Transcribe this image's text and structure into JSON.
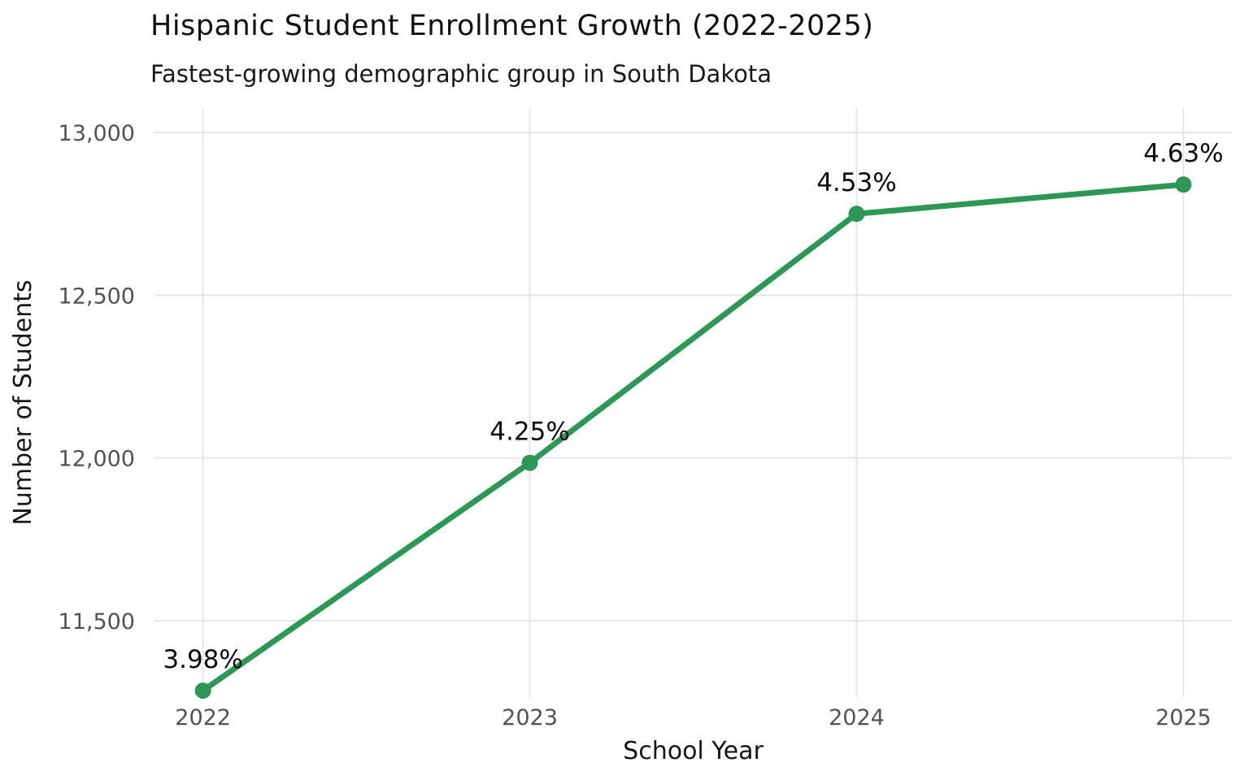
{
  "chart_data": {
    "type": "line",
    "title": "Hispanic Student Enrollment Growth (2022-2025)",
    "subtitle": "Fastest-growing demographic group in South Dakota",
    "xlabel": "School Year",
    "ylabel": "Number of Students",
    "categories": [
      "2022",
      "2023",
      "2024",
      "2025"
    ],
    "values": [
      11285,
      11985,
      12750,
      12840
    ],
    "point_labels": [
      "3.98%",
      "4.25%",
      "4.53%",
      "4.63%"
    ],
    "yticks": [
      11500,
      12000,
      12500,
      13000
    ],
    "ytick_labels": [
      "11,500",
      "12,000",
      "12,500",
      "13,000"
    ],
    "ylim": [
      11265,
      13075
    ],
    "grid": true,
    "legend": "none",
    "colors": {
      "line": "#2e9758",
      "grid": "#e4e4e4",
      "tick_text": "#525252",
      "label_text": "#161616",
      "point_label_text": "#0d0d0d"
    }
  }
}
